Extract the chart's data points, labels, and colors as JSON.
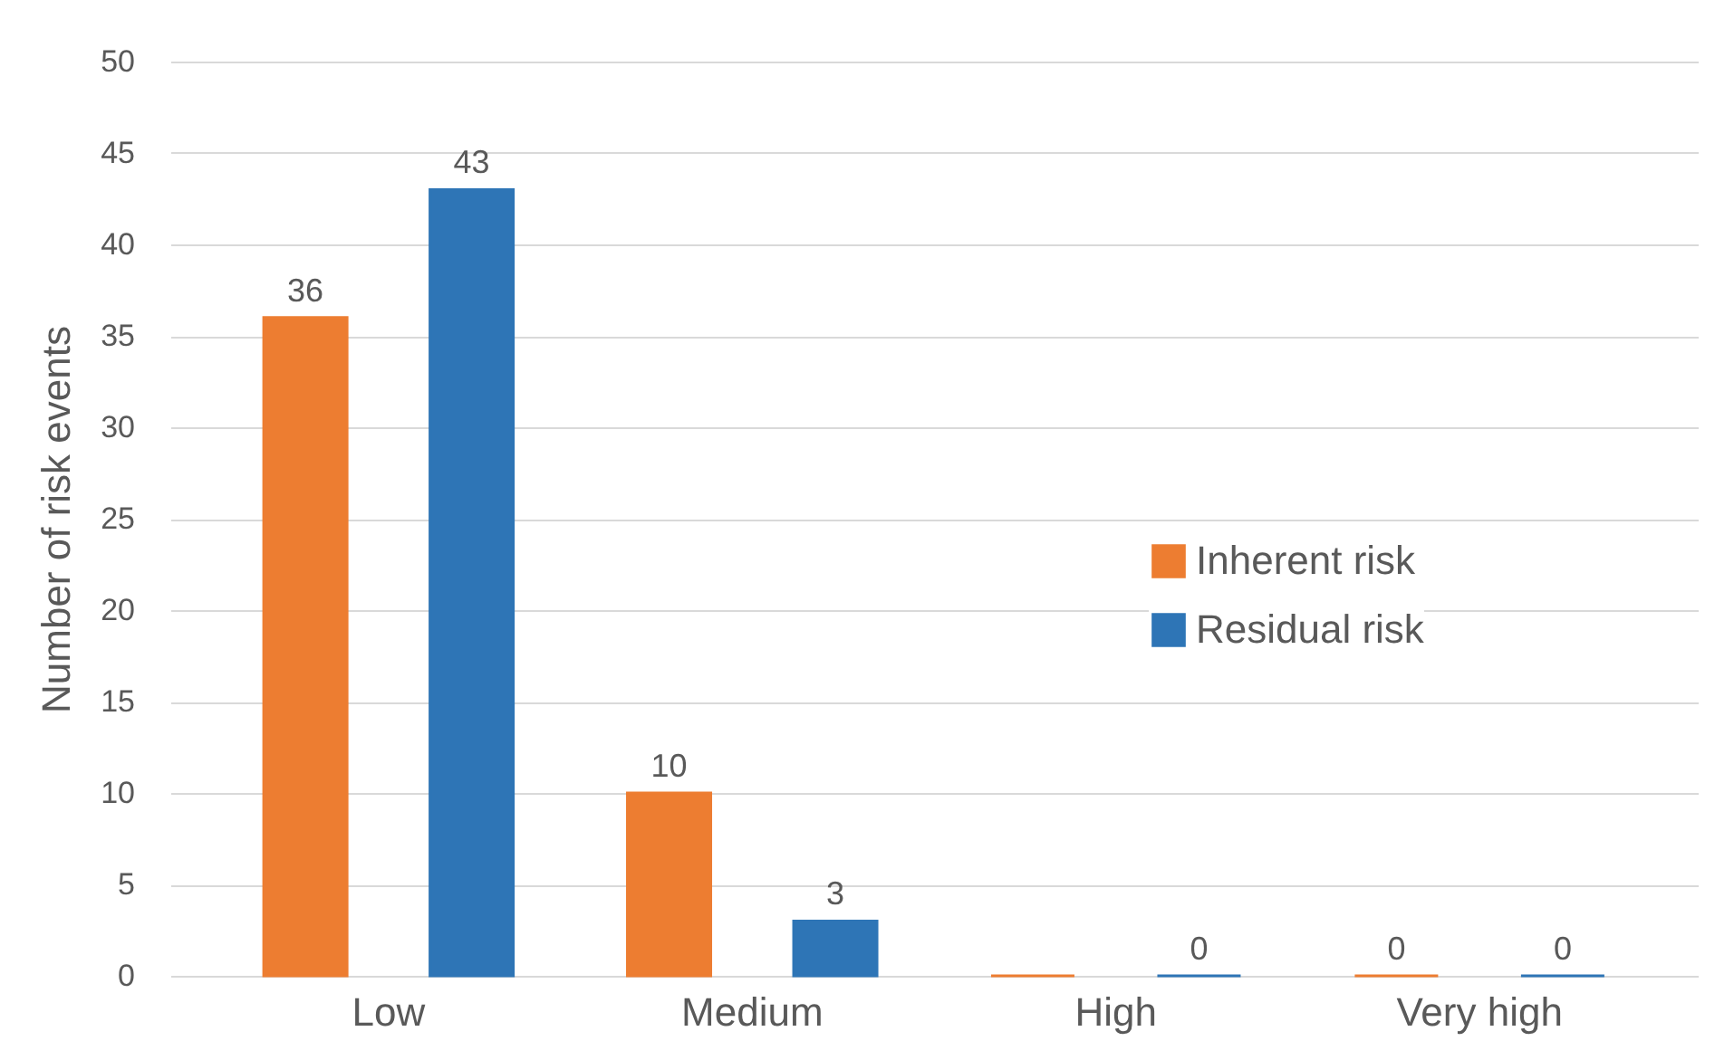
{
  "chart_data": {
    "type": "bar",
    "ylabel": "Number of risk events",
    "categories": [
      "Low",
      "Medium",
      "High",
      "Very high"
    ],
    "series": [
      {
        "name": "Inherent risk",
        "color": "#ed7d31",
        "values": [
          36,
          10,
          0,
          0
        ],
        "value_labels": [
          "36",
          "10",
          null,
          "0"
        ]
      },
      {
        "name": "Residual risk",
        "color": "#2e75b6",
        "values": [
          43,
          3,
          0,
          0
        ],
        "value_labels": [
          "43",
          "3",
          "0",
          "0"
        ]
      }
    ],
    "ylim": [
      0,
      50
    ],
    "yticks": [
      0,
      5,
      10,
      15,
      20,
      25,
      30,
      35,
      40,
      45,
      50
    ],
    "grid": "y",
    "legend": "right"
  }
}
